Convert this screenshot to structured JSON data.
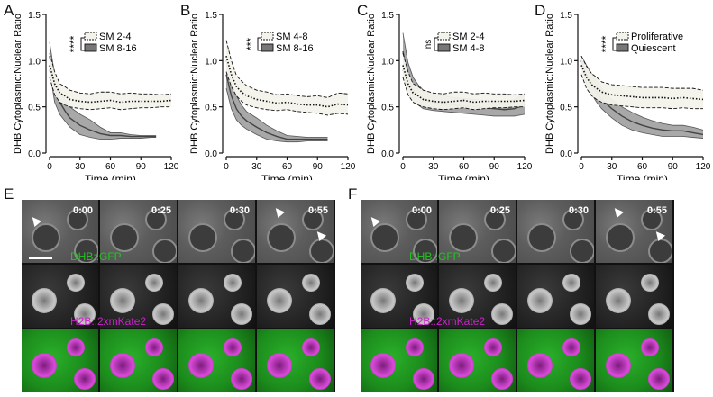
{
  "panels": {
    "A": "A",
    "B": "B",
    "C": "C",
    "D": "D",
    "E": "E",
    "F": "F"
  },
  "colors": {
    "green": "#23c323",
    "magenta": "#cc22cc",
    "light_band": "#f3f3ec",
    "dark_band": "#999999"
  },
  "chart_data": [
    {
      "type": "line",
      "panel": "A",
      "ylabel": "DHB Cytoplasmic:Nuclear Ratio",
      "xlabel": "Time (min)",
      "ylim": [
        0,
        1.5
      ],
      "xlim": [
        0,
        120
      ],
      "yticks": [
        "0.0",
        "0.5",
        "1.0",
        "1.5"
      ],
      "xticks": [
        "0",
        "30",
        "60",
        "90",
        "120"
      ],
      "significance": "****",
      "legend_position": "top-right",
      "grid": false,
      "series": [
        {
          "name": "SM 2-4",
          "style": "dotted",
          "x": [
            0,
            5,
            10,
            15,
            20,
            30,
            40,
            50,
            60,
            70,
            80,
            90,
            100,
            110,
            120
          ],
          "values": [
            0.95,
            0.75,
            0.65,
            0.62,
            0.58,
            0.56,
            0.55,
            0.56,
            0.57,
            0.55,
            0.56,
            0.56,
            0.56,
            0.56,
            0.57
          ],
          "lower": [
            0.82,
            0.63,
            0.55,
            0.52,
            0.5,
            0.48,
            0.47,
            0.48,
            0.49,
            0.47,
            0.48,
            0.49,
            0.49,
            0.5,
            0.5
          ],
          "upper": [
            1.08,
            0.88,
            0.75,
            0.72,
            0.68,
            0.65,
            0.64,
            0.66,
            0.66,
            0.64,
            0.65,
            0.64,
            0.64,
            0.63,
            0.64
          ]
        },
        {
          "name": "SM 8-16",
          "style": "solid",
          "x": [
            0,
            5,
            10,
            15,
            20,
            30,
            40,
            50,
            60,
            70,
            80,
            90,
            100,
            105
          ],
          "values": [
            1.05,
            0.7,
            0.55,
            0.46,
            0.38,
            0.3,
            0.25,
            0.21,
            0.19,
            0.19,
            0.18,
            0.18,
            0.18,
            0.18
          ],
          "lower": [
            0.9,
            0.55,
            0.42,
            0.35,
            0.28,
            0.2,
            0.17,
            0.15,
            0.15,
            0.16,
            0.16,
            0.16,
            0.17,
            0.17
          ],
          "upper": [
            1.2,
            0.85,
            0.68,
            0.58,
            0.5,
            0.42,
            0.36,
            0.28,
            0.22,
            0.22,
            0.2,
            0.19,
            0.19,
            0.19
          ]
        }
      ]
    },
    {
      "type": "line",
      "panel": "B",
      "ylabel": "DHB Cytoplasmic:Nuclear Ratio",
      "xlabel": "Time (min)",
      "ylim": [
        0,
        1.5
      ],
      "xlim": [
        0,
        120
      ],
      "yticks": [
        "0.0",
        "0.5",
        "1.0",
        "1.5"
      ],
      "xticks": [
        "0",
        "30",
        "60",
        "90",
        "120"
      ],
      "significance": "***",
      "legend_position": "top-right",
      "grid": false,
      "series": [
        {
          "name": "SM 4-8",
          "style": "dotted",
          "x": [
            0,
            5,
            10,
            15,
            20,
            30,
            40,
            50,
            60,
            70,
            80,
            90,
            100,
            110,
            120
          ],
          "values": [
            1.05,
            0.85,
            0.72,
            0.66,
            0.62,
            0.58,
            0.56,
            0.54,
            0.55,
            0.53,
            0.52,
            0.52,
            0.5,
            0.53,
            0.52
          ],
          "lower": [
            0.88,
            0.72,
            0.62,
            0.56,
            0.52,
            0.49,
            0.47,
            0.46,
            0.47,
            0.45,
            0.44,
            0.43,
            0.41,
            0.43,
            0.42
          ],
          "upper": [
            1.22,
            1.0,
            0.84,
            0.78,
            0.73,
            0.68,
            0.66,
            0.63,
            0.64,
            0.62,
            0.61,
            0.62,
            0.6,
            0.65,
            0.64
          ]
        },
        {
          "name": "SM 8-16",
          "style": "solid",
          "x": [
            0,
            5,
            10,
            15,
            20,
            30,
            40,
            50,
            60,
            70,
            80,
            90,
            100
          ],
          "values": [
            0.85,
            0.62,
            0.48,
            0.4,
            0.35,
            0.28,
            0.22,
            0.18,
            0.15,
            0.15,
            0.15,
            0.15,
            0.15
          ],
          "lower": [
            0.7,
            0.48,
            0.36,
            0.3,
            0.26,
            0.2,
            0.15,
            0.13,
            0.12,
            0.12,
            0.13,
            0.13,
            0.13
          ],
          "upper": [
            1.0,
            0.76,
            0.62,
            0.52,
            0.45,
            0.38,
            0.3,
            0.24,
            0.19,
            0.18,
            0.17,
            0.17,
            0.17
          ]
        }
      ]
    },
    {
      "type": "line",
      "panel": "C",
      "ylabel": "DHB Cytoplasmic:Nuclear Ratio",
      "xlabel": "Time (min)",
      "ylim": [
        0,
        1.5
      ],
      "xlim": [
        0,
        120
      ],
      "yticks": [
        "0.0",
        "0.5",
        "1.0",
        "1.5"
      ],
      "xticks": [
        "0",
        "30",
        "60",
        "90",
        "120"
      ],
      "significance": "ns",
      "legend_position": "top-right",
      "grid": false,
      "series": [
        {
          "name": "SM 2-4",
          "style": "dotted",
          "x": [
            0,
            5,
            10,
            15,
            20,
            30,
            40,
            50,
            60,
            70,
            80,
            90,
            100,
            110,
            120
          ],
          "values": [
            0.95,
            0.75,
            0.65,
            0.62,
            0.58,
            0.56,
            0.55,
            0.56,
            0.57,
            0.55,
            0.56,
            0.56,
            0.56,
            0.56,
            0.57
          ],
          "lower": [
            0.82,
            0.63,
            0.55,
            0.52,
            0.5,
            0.48,
            0.47,
            0.48,
            0.49,
            0.47,
            0.48,
            0.49,
            0.49,
            0.5,
            0.5
          ],
          "upper": [
            1.08,
            0.88,
            0.75,
            0.72,
            0.68,
            0.65,
            0.64,
            0.66,
            0.66,
            0.64,
            0.65,
            0.64,
            0.64,
            0.63,
            0.64
          ]
        },
        {
          "name": "SM 4-8",
          "style": "solid",
          "x": [
            0,
            5,
            10,
            15,
            20,
            30,
            40,
            50,
            60,
            70,
            80,
            90,
            100,
            110,
            120
          ],
          "values": [
            1.1,
            0.82,
            0.68,
            0.62,
            0.58,
            0.55,
            0.53,
            0.52,
            0.51,
            0.5,
            0.49,
            0.48,
            0.47,
            0.48,
            0.52
          ],
          "lower": [
            0.9,
            0.66,
            0.56,
            0.52,
            0.48,
            0.46,
            0.45,
            0.44,
            0.43,
            0.42,
            0.41,
            0.4,
            0.4,
            0.4,
            0.42
          ],
          "upper": [
            1.3,
            0.98,
            0.82,
            0.74,
            0.68,
            0.64,
            0.62,
            0.6,
            0.59,
            0.58,
            0.57,
            0.56,
            0.56,
            0.58,
            0.64
          ]
        }
      ]
    },
    {
      "type": "line",
      "panel": "D",
      "ylabel": "DHB Cytoplasmic:Nuclear Ratio",
      "xlabel": "Time (min)",
      "ylim": [
        0,
        1.5
      ],
      "xlim": [
        0,
        120
      ],
      "yticks": [
        "0.0",
        "0.5",
        "1.0",
        "1.5"
      ],
      "xticks": [
        "0",
        "30",
        "60",
        "90",
        "120"
      ],
      "significance": "****",
      "legend_position": "top-right",
      "grid": false,
      "series": [
        {
          "name": "Proliferative",
          "style": "dotted",
          "x": [
            0,
            5,
            10,
            15,
            20,
            30,
            40,
            50,
            60,
            70,
            80,
            90,
            100,
            110,
            120
          ],
          "values": [
            0.95,
            0.82,
            0.74,
            0.7,
            0.66,
            0.63,
            0.62,
            0.61,
            0.6,
            0.6,
            0.6,
            0.59,
            0.6,
            0.59,
            0.58
          ],
          "lower": [
            0.85,
            0.7,
            0.62,
            0.58,
            0.55,
            0.52,
            0.51,
            0.5,
            0.49,
            0.49,
            0.49,
            0.48,
            0.49,
            0.48,
            0.48
          ],
          "upper": [
            1.05,
            0.94,
            0.86,
            0.82,
            0.77,
            0.74,
            0.73,
            0.72,
            0.71,
            0.71,
            0.71,
            0.7,
            0.7,
            0.7,
            0.68
          ]
        },
        {
          "name": "Quiescent",
          "style": "solid",
          "x": [
            0,
            5,
            10,
            15,
            20,
            30,
            40,
            50,
            60,
            70,
            80,
            90,
            100,
            110,
            120
          ],
          "values": [
            1.0,
            0.85,
            0.75,
            0.66,
            0.58,
            0.48,
            0.4,
            0.34,
            0.3,
            0.27,
            0.25,
            0.24,
            0.24,
            0.22,
            0.2
          ],
          "lower": [
            0.95,
            0.75,
            0.64,
            0.55,
            0.48,
            0.38,
            0.3,
            0.25,
            0.22,
            0.2,
            0.18,
            0.18,
            0.18,
            0.17,
            0.16
          ],
          "upper": [
            1.05,
            0.95,
            0.86,
            0.78,
            0.7,
            0.58,
            0.5,
            0.44,
            0.39,
            0.35,
            0.32,
            0.3,
            0.3,
            0.28,
            0.25
          ]
        }
      ]
    }
  ],
  "microscopy": {
    "E": {
      "timestamps": [
        "0:00",
        "0:25",
        "0:30",
        "0:55"
      ],
      "rows": [
        {
          "label": "DHB::GFP"
        },
        {
          "label": "H2B::2xmKate2"
        },
        {
          "label": ""
        }
      ]
    },
    "F": {
      "timestamps": [
        "0:00",
        "0:25",
        "0:30",
        "0:55"
      ],
      "rows": [
        {
          "label": "DHB::GFP"
        },
        {
          "label": "H2B::2xmKate2"
        },
        {
          "label": ""
        }
      ]
    }
  }
}
